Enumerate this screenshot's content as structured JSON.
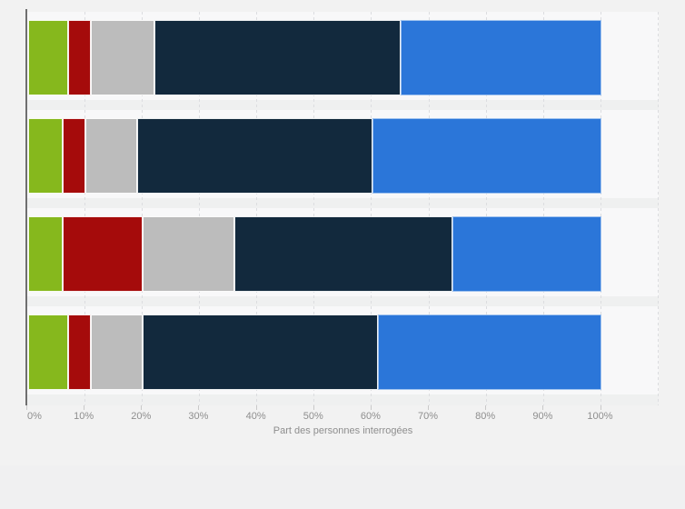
{
  "chart_data": {
    "type": "bar",
    "orientation": "horizontal",
    "stacked": true,
    "unit": "%",
    "xlabel": "Part des personnes interrogées",
    "x_ticks": [
      "0%",
      "10%",
      "20%",
      "30%",
      "40%",
      "50%",
      "60%",
      "70%",
      "80%",
      "90%",
      "100%"
    ],
    "xlim": [
      0,
      100
    ],
    "grid": "vertical-dashed",
    "legend": "none",
    "category_labels_visible": false,
    "categories": [
      "row-1",
      "row-2",
      "row-3",
      "row-4"
    ],
    "series": [
      {
        "name": "green",
        "color": "#86b81d",
        "values": [
          7,
          6,
          6,
          7
        ]
      },
      {
        "name": "dark-red",
        "color": "#a50b0b",
        "values": [
          4,
          4,
          14,
          4
        ]
      },
      {
        "name": "gray",
        "color": "#bcbcbc",
        "values": [
          11,
          9,
          16,
          9
        ]
      },
      {
        "name": "dark-navy",
        "color": "#12293d",
        "values": [
          43,
          41,
          38,
          41
        ]
      },
      {
        "name": "blue",
        "color": "#2b76d9",
        "values": [
          35,
          40,
          26,
          39
        ]
      }
    ]
  },
  "colors": {
    "figure_background": "#f2f2f2",
    "plot_background": "#f8f8f9",
    "row_gap": "#eff0f0",
    "gridline": "#dcdde0",
    "axis_line": "#6f6f6f",
    "tick_text": "#8e8e8e"
  }
}
